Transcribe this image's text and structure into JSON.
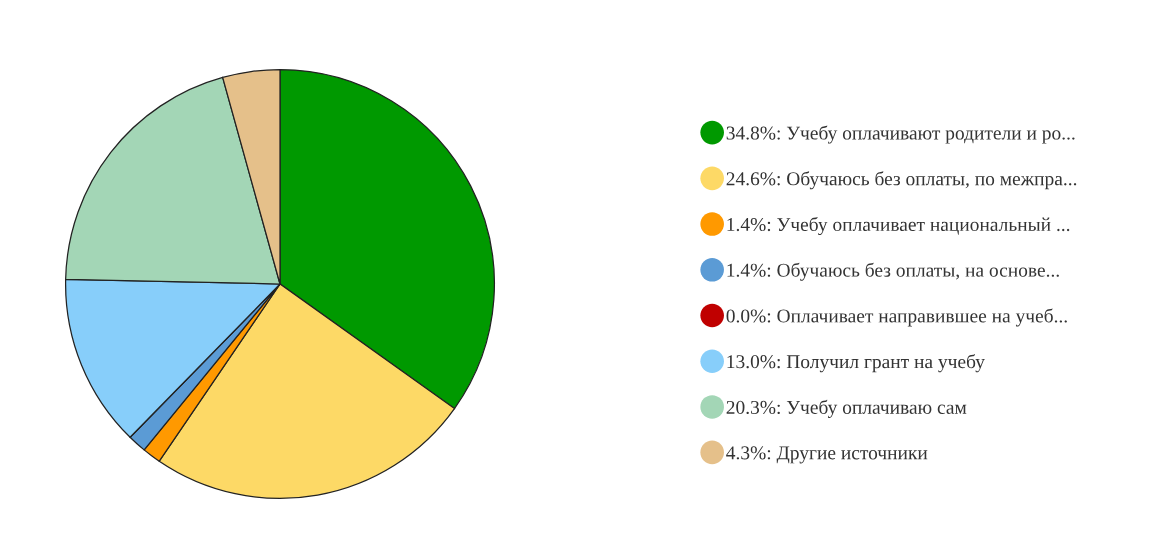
{
  "chart_data": {
    "type": "pie",
    "categories": [
      "34.8%: Учебу оплачивают родители и ро...",
      "24.6%: Обучаюсь без оплаты, по межпра...",
      "1.4%: Учебу оплачивает национальный ...",
      "1.4%: Обучаюсь без оплаты, на основе...",
      "0.0%: Оплачивает направившее на учеб...",
      "13.0%: Получил грант на учебу",
      "20.3%: Учебу оплачиваю сам",
      "4.3%: Другие источники"
    ],
    "values": [
      34.8,
      24.6,
      1.4,
      1.4,
      0.0,
      13.0,
      20.3,
      4.3
    ],
    "colors": [
      "#009900",
      "#fdd966",
      "#ff9900",
      "#5b9bd5",
      "#c00000",
      "#87cefa",
      "#a3d6b6",
      "#e5c08a"
    ],
    "legend": "right"
  }
}
